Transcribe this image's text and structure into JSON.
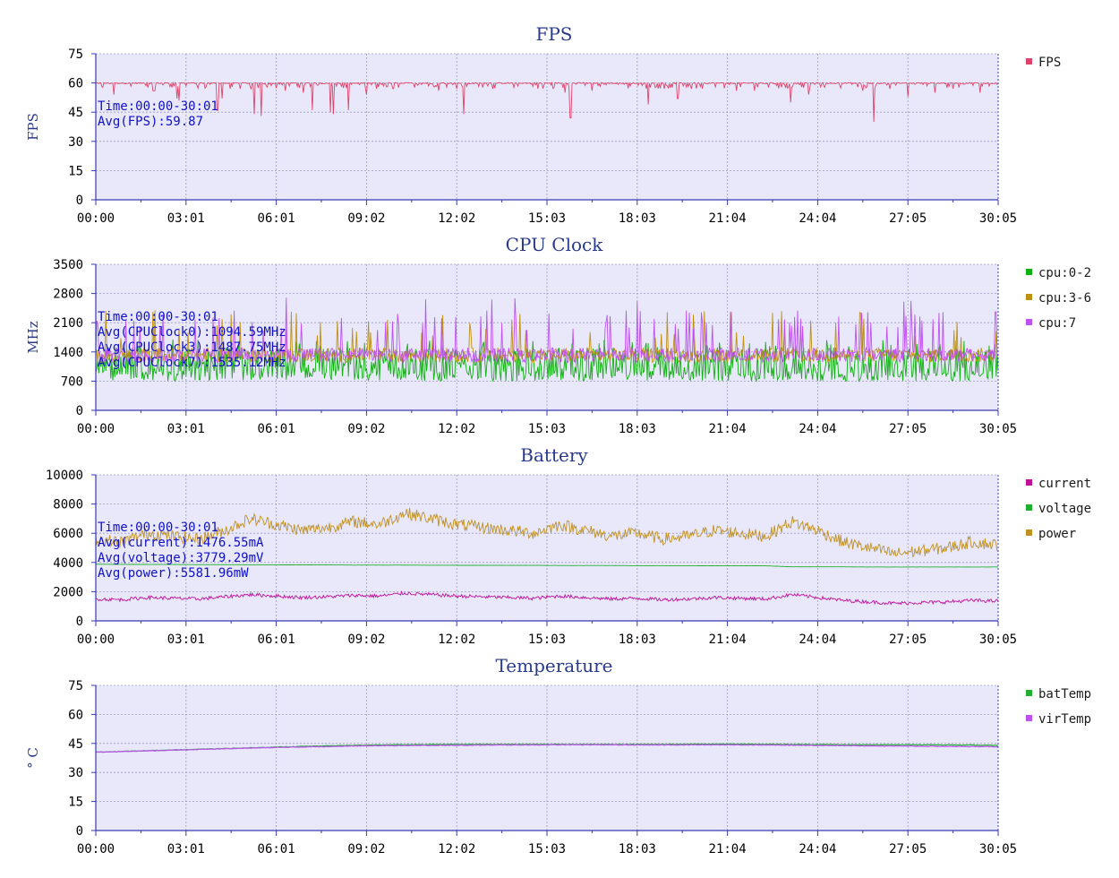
{
  "chart_data": [
    {
      "type": "line",
      "title": "FPS",
      "ylabel": "FPS",
      "ylim": [
        0,
        75
      ],
      "yticks": [
        0,
        15,
        30,
        45,
        60,
        75
      ],
      "xticks": [
        "00:00",
        "03:01",
        "06:01",
        "09:02",
        "12:02",
        "15:03",
        "18:03",
        "21:04",
        "24:04",
        "27:05",
        "30:05"
      ],
      "annotations": [
        "Time:00:00-30:01",
        "Avg(FPS):59.87"
      ],
      "series": [
        {
          "name": "FPS",
          "color": "#e0436a",
          "base": 59.9,
          "jitter": 1.0,
          "dips": [
            [
              0.02,
              54
            ],
            [
              0.065,
              56
            ],
            [
              0.09,
              52
            ],
            [
              0.14,
              52
            ],
            [
              0.16,
              57
            ],
            [
              0.21,
              56
            ],
            [
              0.23,
              55
            ],
            [
              0.24,
              46
            ],
            [
              0.26,
              45
            ],
            [
              0.28,
              46
            ],
            [
              0.3,
              54
            ],
            [
              0.33,
              57
            ],
            [
              0.38,
              56
            ],
            [
              0.4,
              57
            ],
            [
              0.44,
              57
            ],
            [
              0.49,
              57
            ],
            [
              0.52,
              55
            ],
            [
              0.55,
              56
            ],
            [
              0.61,
              57
            ],
            [
              0.63,
              57
            ],
            [
              0.66,
              57
            ],
            [
              0.71,
              56
            ],
            [
              0.73,
              56
            ],
            [
              0.77,
              56
            ],
            [
              0.79,
              54
            ],
            [
              0.85,
              56
            ],
            [
              0.88,
              57
            ],
            [
              0.9,
              53
            ],
            [
              0.95,
              57
            ],
            [
              0.98,
              55
            ]
          ],
          "dips2": [
            [
              0.064,
              56
            ],
            [
              0.092,
              51
            ],
            [
              0.135,
              46
            ],
            [
              0.176,
              44
            ],
            [
              0.183,
              43
            ],
            [
              0.263,
              44
            ],
            [
              0.408,
              44
            ],
            [
              0.526,
              42
            ],
            [
              0.612,
              49
            ],
            [
              0.645,
              52
            ],
            [
              0.77,
              50
            ],
            [
              0.862,
              40
            ],
            [
              0.93,
              55
            ]
          ]
        }
      ]
    },
    {
      "type": "line",
      "title": "CPU Clock",
      "ylabel": "MHz",
      "ylim": [
        0,
        3500
      ],
      "yticks": [
        0,
        700,
        1400,
        2100,
        2800,
        3500
      ],
      "xticks": [
        "00:00",
        "03:01",
        "06:01",
        "09:02",
        "12:02",
        "15:03",
        "18:03",
        "21:04",
        "24:04",
        "27:05",
        "30:05"
      ],
      "annotations": [
        "Time:00:00-30:01",
        "Avg(CPUClock0):1094.59MHz",
        "Avg(CPUClock3):1487.75MHz",
        "Avg(CPUClock7):1535.12MHz"
      ],
      "series": [
        {
          "name": "cpu:0-2",
          "color": "#10b010",
          "base": 1094.59,
          "low": 600,
          "high": 1600
        },
        {
          "name": "cpu:3-6",
          "color": "#c09010",
          "base": 1487.75,
          "low": 1000,
          "high": 2400
        },
        {
          "name": "cpu:7",
          "color": "#c050f0",
          "base": 1535.12,
          "low": 1000,
          "high": 2800
        }
      ]
    },
    {
      "type": "line",
      "title": "Battery",
      "ylabel": "",
      "ylim": [
        0,
        10000
      ],
      "yticks": [
        0,
        2000,
        4000,
        6000,
        8000,
        10000
      ],
      "xticks": [
        "00:00",
        "03:01",
        "06:01",
        "09:02",
        "12:02",
        "15:03",
        "18:03",
        "21:04",
        "24:04",
        "27:05",
        "30:05"
      ],
      "annotations": [
        "Time:00:00-30:01",
        "Avg(current):1476.55mA",
        "Avg(voltage):3779.29mV",
        "Avg(power):5581.96mW"
      ],
      "series": [
        {
          "name": "current",
          "color": "#c0109a",
          "profile": [
            1500,
            1450,
            1600,
            1550,
            1500,
            1650,
            1800,
            1700,
            1600,
            1650,
            1750,
            1700,
            1900,
            1800,
            1700,
            1650,
            1600,
            1550,
            1700,
            1600,
            1500,
            1550,
            1450,
            1500,
            1600,
            1550,
            1500,
            1800,
            1600,
            1400,
            1300,
            1200,
            1250,
            1300,
            1400,
            1350
          ]
        },
        {
          "name": "voltage",
          "color": "#20b030",
          "profile": [
            3880,
            3870,
            3860,
            3860,
            3850,
            3850,
            3840,
            3840,
            3830,
            3830,
            3820,
            3820,
            3820,
            3810,
            3810,
            3800,
            3800,
            3800,
            3790,
            3790,
            3790,
            3780,
            3780,
            3780,
            3770,
            3770,
            3770,
            3700,
            3700,
            3700,
            3690,
            3690,
            3690,
            3690,
            3690,
            3690
          ]
        },
        {
          "name": "power",
          "color": "#c09020",
          "profile": [
            5600,
            5400,
            6000,
            5800,
            5600,
            6200,
            7000,
            6600,
            6200,
            6400,
            6800,
            6600,
            7400,
            7000,
            6600,
            6400,
            6200,
            6000,
            6600,
            6200,
            5800,
            6000,
            5600,
            5800,
            6200,
            6000,
            5800,
            6800,
            6200,
            5400,
            5000,
            4600,
            4800,
            5000,
            5400,
            5200
          ]
        }
      ]
    },
    {
      "type": "line",
      "title": "Temperature",
      "ylabel": "° C",
      "ylim": [
        0,
        75
      ],
      "yticks": [
        0,
        15,
        30,
        45,
        60,
        75
      ],
      "xticks": [
        "00:00",
        "03:01",
        "06:01",
        "09:02",
        "12:02",
        "15:03",
        "18:03",
        "21:04",
        "24:04",
        "27:05",
        "30:05"
      ],
      "annotations": [],
      "series": [
        {
          "name": "batTemp",
          "color": "#20b030",
          "profile": [
            40.5,
            41.5,
            42.5,
            43.5,
            44.2,
            44.5,
            44.5,
            44.5,
            44.5,
            44.7,
            44.5,
            44.3,
            44.3,
            44.0
          ]
        },
        {
          "name": "virTemp",
          "color": "#c050f0",
          "profile": [
            40.5,
            41.4,
            42.4,
            43.2,
            43.8,
            44.0,
            44.2,
            44.3,
            44.2,
            44.3,
            44.1,
            43.8,
            43.5,
            43.3
          ]
        }
      ]
    }
  ]
}
